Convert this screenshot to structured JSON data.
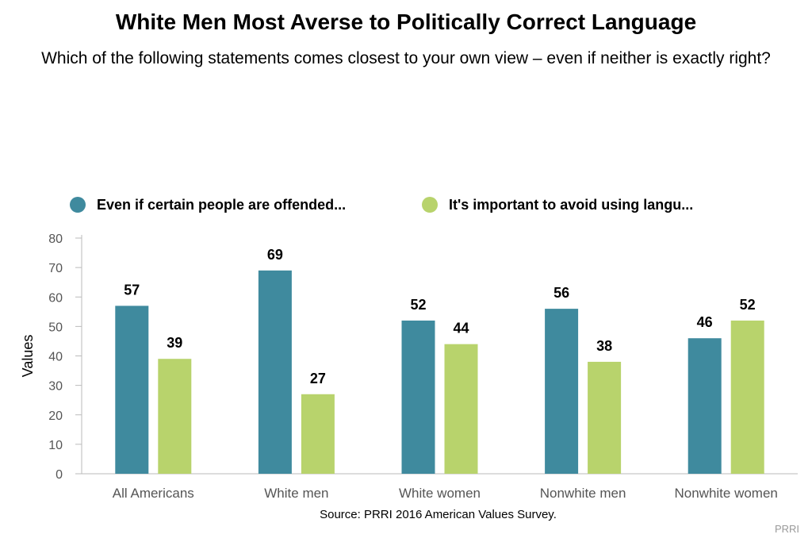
{
  "title": "White Men Most Averse to Politically Correct Language",
  "subtitle": "Which of the following statements comes closest to your own view – even if neither is exactly right?",
  "source": "Source: PRRI 2016 American Values Survey.",
  "credit": "PRRI",
  "colors": {
    "series1": "#3f8a9e",
    "series2": "#b8d36c"
  },
  "chart_data": {
    "type": "bar",
    "title": "White Men Most Averse to Politically Correct Language",
    "subtitle": "Which of the following statements comes closest to your own view – even if neither is exactly right?",
    "xlabel": "",
    "ylabel": "Values",
    "ylim": [
      0,
      80
    ],
    "yticks": [
      0,
      10,
      20,
      30,
      40,
      50,
      60,
      70,
      80
    ],
    "grid": false,
    "legend": "top",
    "categories": [
      "All Americans",
      "White men",
      "White women",
      "Nonwhite men",
      "Nonwhite women"
    ],
    "series": [
      {
        "name": "Even if certain people are offended...",
        "values": [
          57,
          69,
          52,
          56,
          46
        ]
      },
      {
        "name": "It's important to avoid using langu...",
        "values": [
          39,
          27,
          44,
          38,
          52
        ]
      }
    ]
  }
}
